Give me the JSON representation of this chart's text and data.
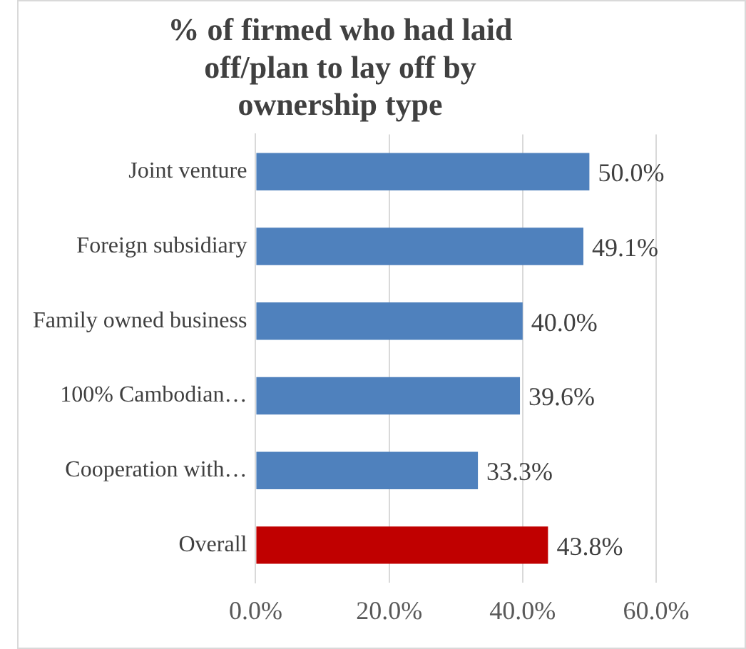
{
  "chart_data": {
    "type": "bar",
    "orientation": "horizontal",
    "title": "% of firmed who had laid off/plan to lay off by ownership type",
    "categories": [
      "Joint venture",
      "Foreign subsidiary",
      "Family owned business",
      "100% Cambodian…",
      "Cooperation with…",
      "Overall"
    ],
    "values": [
      50.0,
      49.1,
      40.0,
      39.6,
      33.3,
      43.8
    ],
    "colors": [
      "#4f81bd",
      "#4f81bd",
      "#4f81bd",
      "#4f81bd",
      "#4f81bd",
      "#c00000"
    ],
    "value_labels": [
      "50.0%",
      "49.1%",
      "40.0%",
      "39.6%",
      "33.3%",
      "43.8%"
    ],
    "xlim": [
      0,
      60
    ],
    "xticks": [
      {
        "value": 0,
        "label": "0.0%"
      },
      {
        "value": 20,
        "label": "20.0%"
      },
      {
        "value": 40,
        "label": "40.0%"
      },
      {
        "value": 60,
        "label": "60.0%"
      }
    ],
    "grid": "x",
    "legend": false
  }
}
